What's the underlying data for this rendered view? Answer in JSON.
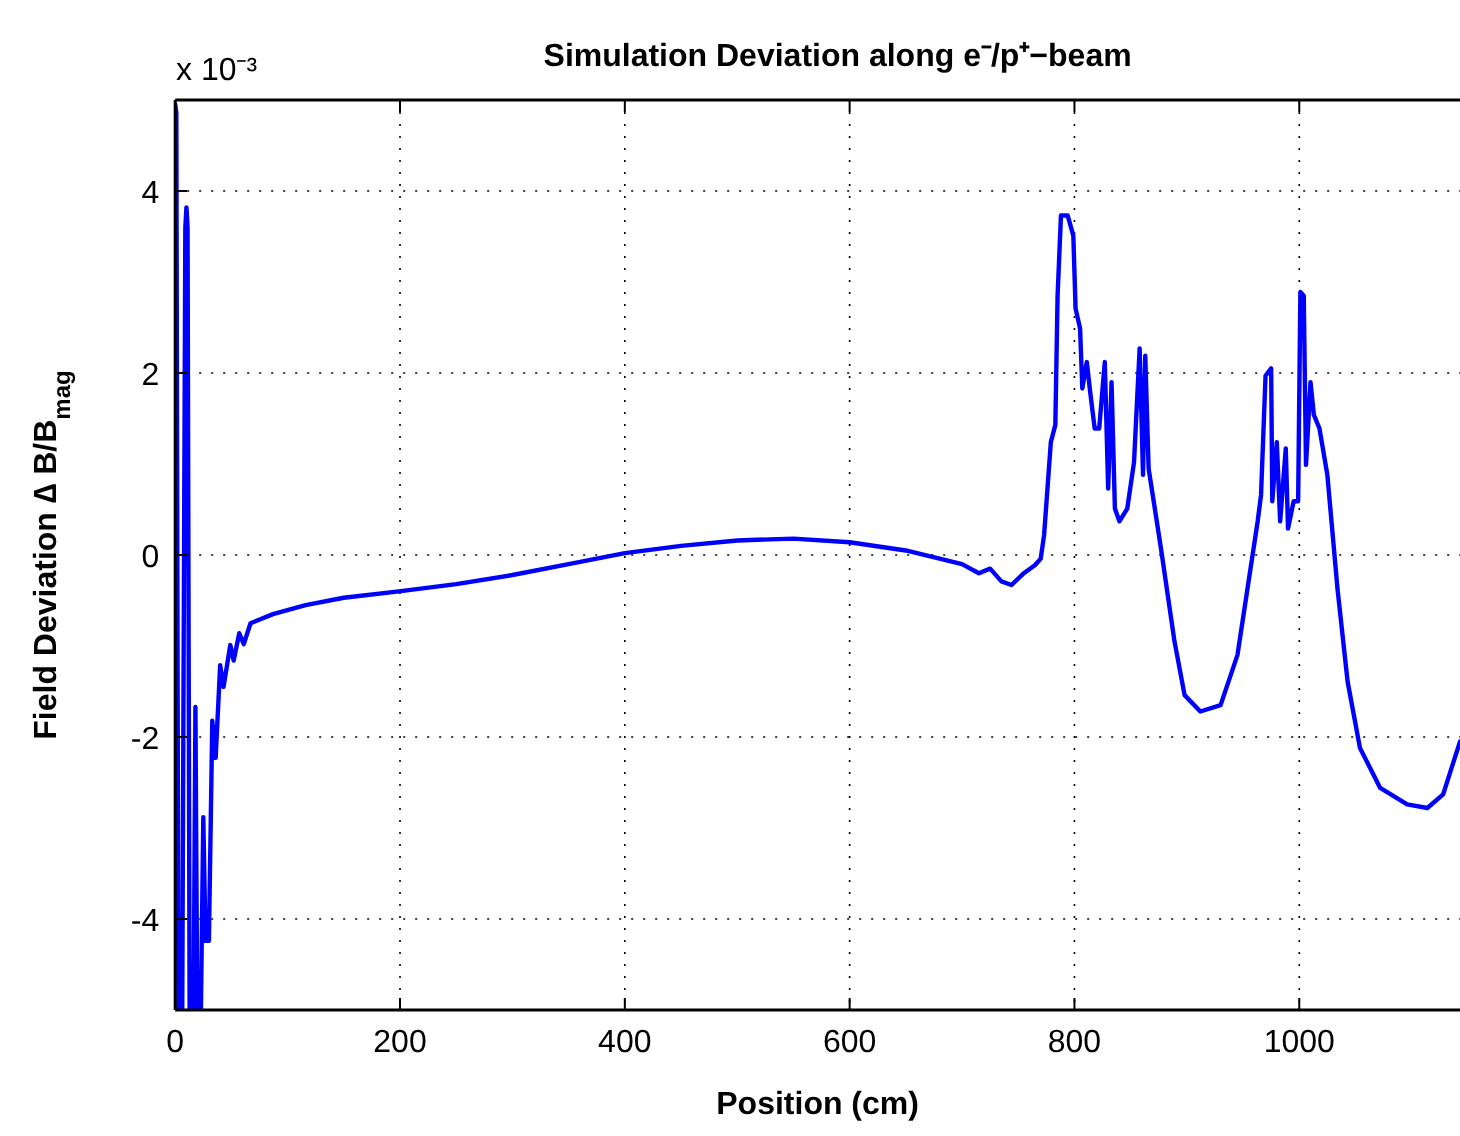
{
  "chart_data": {
    "type": "line",
    "title": "Simulation Deviation along e⁻/p⁺−beam",
    "xlabel": "Position (cm)",
    "ylabel": "Field Deviation ∆ B/B$_{mag}$",
    "annotations": [
      "x 10⁻³"
    ],
    "series": [
      {
        "color": "#0000ff",
        "x": [
          0,
          1,
          3,
          6,
          9,
          10,
          11,
          13,
          16,
          18,
          20,
          22,
          25,
          27,
          30,
          33,
          36,
          40,
          43,
          49,
          52,
          57,
          61,
          67,
          73,
          87,
          116,
          150,
          199,
          250,
          300,
          350,
          400,
          450,
          500,
          550,
          600,
          650,
          700,
          715,
          725,
          735,
          744,
          755,
          765,
          770,
          773,
          779,
          783,
          785,
          788,
          794,
          799,
          801,
          805,
          807,
          811,
          814,
          818,
          822,
          827,
          830,
          833,
          836,
          840,
          847,
          853,
          858,
          861,
          863,
          866,
          877,
          889,
          898,
          912,
          930,
          945,
          963,
          966,
          970,
          975,
          976,
          980,
          983,
          988,
          990,
          995,
          999,
          1001,
          1004,
          1006,
          1010,
          1013,
          1018,
          1025,
          1034,
          1043,
          1054,
          1072,
          1096,
          1114,
          1128,
          1143
        ],
        "values": [
          4.95,
          4.86,
          null,
          null,
          3.6,
          3.82,
          3.6,
          null,
          null,
          -1.67,
          null,
          null,
          -2.88,
          -4.24,
          -4.24,
          -1.82,
          -2.23,
          -1.21,
          -1.45,
          -0.99,
          -1.16,
          -0.86,
          -0.98,
          -0.75,
          -0.72,
          -0.65,
          -0.55,
          -0.47,
          -0.4,
          -0.32,
          -0.22,
          -0.1,
          0.02,
          0.1,
          0.16,
          0.18,
          0.14,
          0.05,
          -0.1,
          -0.2,
          -0.15,
          -0.29,
          -0.33,
          -0.2,
          -0.11,
          -0.04,
          0.22,
          1.24,
          1.43,
          2.85,
          3.73,
          3.73,
          3.51,
          2.71,
          2.49,
          1.83,
          2.12,
          1.79,
          1.39,
          1.39,
          2.12,
          0.73,
          1.9,
          0.51,
          0.37,
          0.51,
          1.02,
          2.27,
          0.88,
          2.19,
          0.95,
          0.07,
          -0.95,
          -1.54,
          -1.72,
          -1.65,
          -1.1,
          0.37,
          0.66,
          1.97,
          2.05,
          0.59,
          1.24,
          0.37,
          1.17,
          0.29,
          0.59,
          0.59,
          2.89,
          2.85,
          0.99,
          1.9,
          1.54,
          1.39,
          0.88,
          -0.37,
          -1.39,
          -2.12,
          -2.56,
          -2.74,
          -2.78,
          -2.63,
          -2.05
        ]
      }
    ],
    "xlim": [
      0,
      1143
    ],
    "ylim": [
      -5,
      5
    ],
    "xticks": [
      0,
      200,
      400,
      600,
      800,
      1000
    ],
    "yticks": [
      -4,
      -2,
      0,
      2,
      4
    ],
    "grid": true,
    "line_style": "solid"
  }
}
